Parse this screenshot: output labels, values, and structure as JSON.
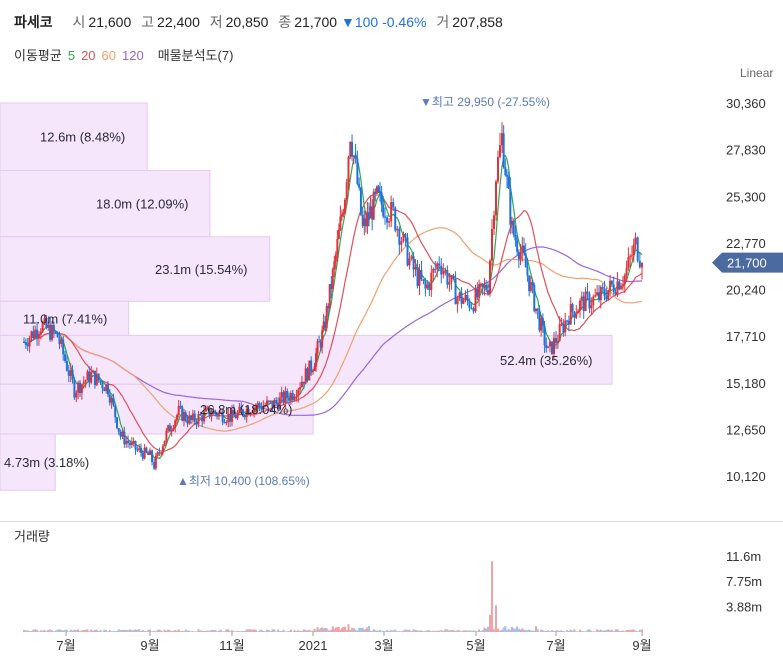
{
  "header": {
    "name": "파세코",
    "open_label": "시",
    "open": "21,600",
    "high_label": "고",
    "high": "22,400",
    "low_label": "저",
    "low": "20,850",
    "close_label": "종",
    "close": "21,700",
    "change": "▼100 -0.46%",
    "volume_label": "거",
    "volume": "207,858"
  },
  "ma_legend": {
    "label": "이동평균",
    "periods": [
      "5",
      "20",
      "60",
      "120"
    ],
    "colors": [
      "#2fa84f",
      "#e0505a",
      "#f0a070",
      "#9966dd"
    ],
    "vp_label": "매물분석도(7)"
  },
  "scale_label": "Linear",
  "volume_title": "거래량",
  "current_price_tag": "21,700",
  "annotations": {
    "high": "▼최고 29,950 (-27.55%)",
    "low": "▲최저 10,400 (108.65%)"
  },
  "chart_data": [
    {
      "type": "candlestick",
      "scale": "linear",
      "x_ticks": [
        "7월",
        "9월",
        "11월",
        "2021",
        "3월",
        "5월",
        "7월",
        "9월"
      ],
      "y_ticks": [
        "10,120",
        "12,650",
        "15,180",
        "17,710",
        "20,240",
        "22,770",
        "25,300",
        "27,830",
        "30,360"
      ],
      "y_tick_values": [
        10120,
        12650,
        15180,
        17710,
        20240,
        22770,
        25300,
        27830,
        30360
      ],
      "ylim": [
        8900,
        31700
      ],
      "last_close": 21700,
      "period_high": 29950,
      "period_low": 10400,
      "colors": {
        "up": "#e0323c",
        "down": "#1e73d8"
      },
      "price_path": [
        {
          "m": 0,
          "v": 17400
        },
        {
          "m": 0.4,
          "v": 18300
        },
        {
          "m": 0.8,
          "v": 17700
        },
        {
          "m": 1.2,
          "v": 14800
        },
        {
          "m": 1.6,
          "v": 15600
        },
        {
          "m": 2.0,
          "v": 14900
        },
        {
          "m": 2.3,
          "v": 12300
        },
        {
          "m": 2.7,
          "v": 11500
        },
        {
          "m": 3.0,
          "v": 11200
        },
        {
          "m": 3.1,
          "v": 10700
        },
        {
          "m": 3.4,
          "v": 12400
        },
        {
          "m": 3.7,
          "v": 13600
        },
        {
          "m": 4.0,
          "v": 13100
        },
        {
          "m": 4.5,
          "v": 13600
        },
        {
          "m": 5.0,
          "v": 13300
        },
        {
          "m": 5.5,
          "v": 13900
        },
        {
          "m": 6.0,
          "v": 14000
        },
        {
          "m": 6.5,
          "v": 14600
        },
        {
          "m": 7.0,
          "v": 16200
        },
        {
          "m": 7.3,
          "v": 18000
        },
        {
          "m": 7.6,
          "v": 21500
        },
        {
          "m": 7.9,
          "v": 25500
        },
        {
          "m": 8.05,
          "v": 28800
        },
        {
          "m": 8.2,
          "v": 26800
        },
        {
          "m": 8.4,
          "v": 23500
        },
        {
          "m": 8.8,
          "v": 25200
        },
        {
          "m": 9.2,
          "v": 24300
        },
        {
          "m": 9.6,
          "v": 21500
        },
        {
          "m": 9.9,
          "v": 20200
        },
        {
          "m": 10.2,
          "v": 21800
        },
        {
          "m": 10.6,
          "v": 19800
        },
        {
          "m": 10.9,
          "v": 19500
        },
        {
          "m": 11.3,
          "v": 20500
        },
        {
          "m": 11.5,
          "v": 26500
        },
        {
          "m": 11.65,
          "v": 28500
        },
        {
          "m": 11.9,
          "v": 23500
        },
        {
          "m": 12.2,
          "v": 21800
        },
        {
          "m": 12.5,
          "v": 19200
        },
        {
          "m": 12.8,
          "v": 16800
        },
        {
          "m": 13.0,
          "v": 17500
        },
        {
          "m": 13.3,
          "v": 18900
        },
        {
          "m": 13.6,
          "v": 19500
        },
        {
          "m": 14.0,
          "v": 19800
        },
        {
          "m": 14.3,
          "v": 20400
        },
        {
          "m": 14.6,
          "v": 21000
        },
        {
          "m": 14.85,
          "v": 22700
        },
        {
          "m": 15.0,
          "v": 21700
        }
      ],
      "volume_profile": [
        {
          "label": "12.6m (8.48%)",
          "price_low": 26700,
          "price_high": 30360
        },
        {
          "label": "18.0m (12.09%)",
          "price_low": 23100,
          "price_high": 26700
        },
        {
          "label": "23.1m (15.54%)",
          "price_low": 19600,
          "price_high": 23100
        },
        {
          "label": "11.0m (7.41%)",
          "price_low": 17750,
          "price_high": 19600
        },
        {
          "label": "52.4m (35.26%)",
          "price_low": 15100,
          "price_high": 17750
        },
        {
          "label": "26.8m (18.04%)",
          "price_low": 12400,
          "price_high": 15100
        },
        {
          "label": "4.73m (3.18%)",
          "price_low": 9350,
          "price_high": 12400
        }
      ],
      "volume_pct": [
        8.48,
        12.09,
        15.54,
        7.41,
        35.26,
        18.04,
        3.18
      ]
    },
    {
      "type": "bar",
      "title": "거래량",
      "y_ticks": [
        "3.88m",
        "7.75m",
        "11.6m"
      ],
      "y_tick_values": [
        3.88,
        7.75,
        11.6
      ],
      "ylim": [
        0,
        14.5
      ],
      "spikes": [
        {
          "m": 11.4,
          "v": 10.8
        },
        {
          "m": 11.5,
          "v": 4.1
        },
        {
          "m": 11.35,
          "v": 2.6
        },
        {
          "m": 8.0,
          "v": 1.2
        },
        {
          "m": 7.9,
          "v": 0.8
        },
        {
          "m": 12.5,
          "v": 0.9
        }
      ]
    }
  ]
}
